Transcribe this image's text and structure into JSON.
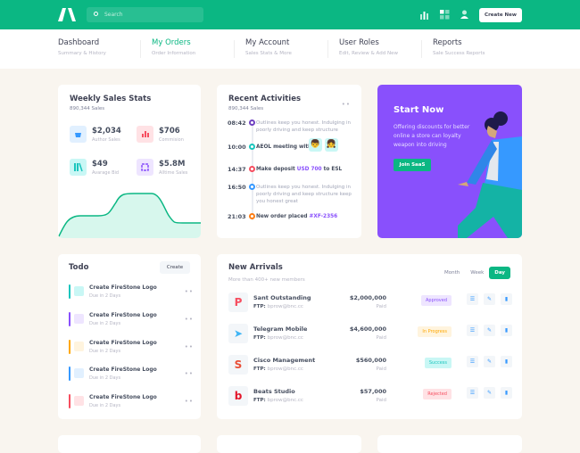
{
  "header": {
    "search_placeholder": "Search",
    "create_label": "Create New",
    "icons": [
      "bar-chart-icon",
      "grid-icon",
      "user-icon"
    ]
  },
  "nav": [
    {
      "title": "Dashboard",
      "sub": "Summary & History"
    },
    {
      "title": "My Orders",
      "sub": "Order Information",
      "active": true
    },
    {
      "title": "My Account",
      "sub": "Sales Stats & More"
    },
    {
      "title": "User Roles",
      "sub": "Edit, Review & Add New"
    },
    {
      "title": "Reports",
      "sub": "Sale Success Reports"
    }
  ],
  "weekly": {
    "title": "Weekly Sales Stats",
    "sub": "890,344 Sales",
    "stats": [
      {
        "value": "$2,034",
        "label": "Author Sales",
        "color": "#e1f0ff"
      },
      {
        "value": "$706",
        "label": "Commision",
        "color": "#ffe2e5"
      },
      {
        "value": "$49",
        "label": "Avarage Bid",
        "color": "#c9f7f5"
      },
      {
        "value": "$5.8M",
        "label": "Alltime Sales",
        "color": "#eee5ff"
      }
    ],
    "accent": "#0bb783"
  },
  "activities": {
    "title": "Recent Activities",
    "sub": "890,344 Sales",
    "items": [
      {
        "time": "08:42",
        "text": "Outlines keep you honest. Indulging in poorly driving and keep structure",
        "color": "#6f42c1"
      },
      {
        "time": "10:00",
        "text": "AEOL meeting with",
        "color": "#1bc5bd",
        "bold": true
      },
      {
        "time": "14:37",
        "text": "Make deposit ",
        "highlight": "USD 700",
        "after": " to ESL",
        "color": "#f64e60",
        "bold": true
      },
      {
        "time": "16:50",
        "text": "Outlines keep you honest. Indulging in poorly driving and keep structure keep you honest great",
        "color": "#3699ff"
      },
      {
        "time": "21:03",
        "text": "New order placed ",
        "highlight": "#XF-2356",
        "color": "#fd7e14",
        "bold": true
      }
    ]
  },
  "promo": {
    "title": "Start Now",
    "text": "Offering discounts for better online a store can loyalty weapon into driving",
    "button": "Join SaaS",
    "color": "#8950fc"
  },
  "todo": {
    "title": "Todo",
    "create": "Create",
    "items": [
      {
        "name": "Create FireStone Logo",
        "due": "Due in 2 Days",
        "color": "#1bc5bd",
        "bg": "#c9f7f5"
      },
      {
        "name": "Create FireStone Logo",
        "due": "Due in 2 Days",
        "color": "#8950fc",
        "bg": "#eee5ff"
      },
      {
        "name": "Create FireStone Logo",
        "due": "Due in 2 Days",
        "color": "#ffa800",
        "bg": "#fff4de"
      },
      {
        "name": "Create FireStone Logo",
        "due": "Due in 2 Days",
        "color": "#3699ff",
        "bg": "#e1f0ff"
      },
      {
        "name": "Create FireStone Logo",
        "due": "Due in 2 Days",
        "color": "#f64e60",
        "bg": "#ffe2e5"
      }
    ]
  },
  "arrivals": {
    "title": "New Arrivals",
    "sub": "More than 400+ new members",
    "tabs": [
      "Month",
      "Week",
      "Day"
    ],
    "active_tab": "Day",
    "ftp_label": "FTP:",
    "rows": [
      {
        "name": "Sant Outstanding",
        "ftp": "bprow@bnc.cc",
        "amount": "$2,000,000",
        "paid": "Paid",
        "status": "Approved",
        "status_color": "#8950fc",
        "status_bg": "#eee5ff",
        "logo": "P",
        "logo_color": "#f64e60"
      },
      {
        "name": "Telegram Mobile",
        "ftp": "bprow@bnc.cc",
        "amount": "$4,600,000",
        "paid": "Paid",
        "status": "In Progress",
        "status_color": "#ffa800",
        "status_bg": "#fff4de",
        "logo": "➤",
        "logo_color": "#3fb5f5"
      },
      {
        "name": "Cisco Management",
        "ftp": "bprow@bnc.cc",
        "amount": "$560,000",
        "paid": "Paid",
        "status": "Success",
        "status_color": "#1bc5bd",
        "status_bg": "#c9f7f5",
        "logo": "S",
        "logo_color": "#e94f37"
      },
      {
        "name": "Beats Studio",
        "ftp": "bprow@bnc.cc",
        "amount": "$57,000",
        "paid": "Paid",
        "status": "Rejected",
        "status_color": "#f64e60",
        "status_bg": "#ffe2e5",
        "logo": "b",
        "logo_color": "#e3162b"
      }
    ]
  }
}
